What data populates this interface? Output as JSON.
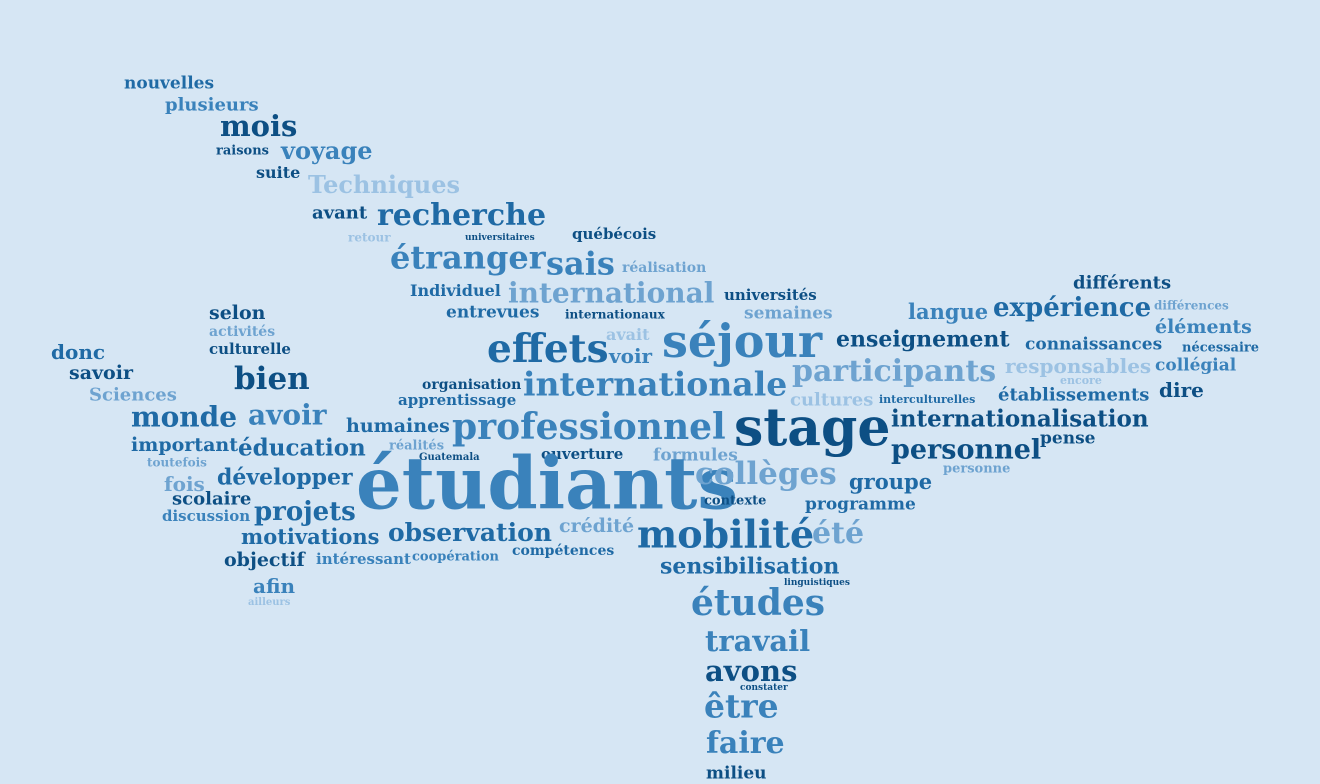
{
  "word_cloud": {
    "background_color": "#d6e6f4",
    "palette": [
      "#0d4f84",
      "#1f6aa5",
      "#3a82bb",
      "#6ea3d0",
      "#9cc2e3"
    ],
    "words": [
      {
        "id": "nouvelles",
        "text": "nouvelles",
        "color": "c2"
      },
      {
        "id": "plusieurs",
        "text": "plusieurs",
        "color": "c3"
      },
      {
        "id": "mois",
        "text": "mois",
        "color": "c1"
      },
      {
        "id": "raisons",
        "text": "raisons",
        "color": "c1"
      },
      {
        "id": "voyage",
        "text": "voyage",
        "color": "c3"
      },
      {
        "id": "suite",
        "text": "suite",
        "color": "c1"
      },
      {
        "id": "techniques",
        "text": "Techniques",
        "color": "c5"
      },
      {
        "id": "avant",
        "text": "avant",
        "color": "c1"
      },
      {
        "id": "recherche",
        "text": "recherche",
        "color": "c2"
      },
      {
        "id": "retour",
        "text": "retour",
        "color": "c5"
      },
      {
        "id": "universitaires",
        "text": "universitaires",
        "color": "c1"
      },
      {
        "id": "quebecois",
        "text": "québécois",
        "color": "c1"
      },
      {
        "id": "etranger",
        "text": "étranger",
        "color": "c3"
      },
      {
        "id": "sais",
        "text": "sais",
        "color": "c3"
      },
      {
        "id": "realisation",
        "text": "réalisation",
        "color": "c4"
      },
      {
        "id": "individuel",
        "text": "Individuel",
        "color": "c2"
      },
      {
        "id": "international",
        "text": "international",
        "color": "c4"
      },
      {
        "id": "universites",
        "text": "universités",
        "color": "c1"
      },
      {
        "id": "differents",
        "text": "différents",
        "color": "c1"
      },
      {
        "id": "selon",
        "text": "selon",
        "color": "c1"
      },
      {
        "id": "entrevues",
        "text": "entrevues",
        "color": "c2"
      },
      {
        "id": "internationaux",
        "text": "internationaux",
        "color": "c1"
      },
      {
        "id": "semaines",
        "text": "semaines",
        "color": "c4"
      },
      {
        "id": "langue",
        "text": "langue",
        "color": "c3"
      },
      {
        "id": "experience",
        "text": "expérience",
        "color": "c2"
      },
      {
        "id": "differences",
        "text": "différences",
        "color": "c4"
      },
      {
        "id": "activites",
        "text": "activités",
        "color": "c4"
      },
      {
        "id": "avait",
        "text": "avait",
        "color": "c5"
      },
      {
        "id": "elements",
        "text": "éléments",
        "color": "c3"
      },
      {
        "id": "culturelle",
        "text": "culturelle",
        "color": "c1"
      },
      {
        "id": "effets",
        "text": "effets",
        "color": "c2"
      },
      {
        "id": "sejour",
        "text": "séjour",
        "color": "c3"
      },
      {
        "id": "enseignement",
        "text": "enseignement",
        "color": "c1"
      },
      {
        "id": "donc",
        "text": "donc",
        "color": "c2"
      },
      {
        "id": "voir",
        "text": "voir",
        "color": "c3"
      },
      {
        "id": "connaissances",
        "text": "connaissances",
        "color": "c2"
      },
      {
        "id": "necessaire",
        "text": "nécessaire",
        "color": "c2"
      },
      {
        "id": "savoir",
        "text": "savoir",
        "color": "c1"
      },
      {
        "id": "bien",
        "text": "bien",
        "color": "c1"
      },
      {
        "id": "participants",
        "text": "participants",
        "color": "c4"
      },
      {
        "id": "responsables",
        "text": "responsables",
        "color": "c5"
      },
      {
        "id": "collegial",
        "text": "collégial",
        "color": "c3"
      },
      {
        "id": "encore",
        "text": "encore",
        "color": "c5"
      },
      {
        "id": "organisation",
        "text": "organisation",
        "color": "c1"
      },
      {
        "id": "internationale",
        "text": "internationale",
        "color": "c3"
      },
      {
        "id": "dire",
        "text": "dire",
        "color": "c1"
      },
      {
        "id": "sciences",
        "text": "Sciences",
        "color": "c4"
      },
      {
        "id": "apprentissage",
        "text": "apprentissage",
        "color": "c2"
      },
      {
        "id": "cultures",
        "text": "cultures",
        "color": "c5"
      },
      {
        "id": "interculturelles",
        "text": "interculturelles",
        "color": "c2"
      },
      {
        "id": "etablissements",
        "text": "établissements",
        "color": "c2"
      },
      {
        "id": "monde",
        "text": "monde",
        "color": "c2"
      },
      {
        "id": "avoir",
        "text": "avoir",
        "color": "c3"
      },
      {
        "id": "internationalisation",
        "text": "internationalisation",
        "color": "c1"
      },
      {
        "id": "humaines",
        "text": "humaines",
        "color": "c2"
      },
      {
        "id": "professionnel",
        "text": "professionnel",
        "color": "c3"
      },
      {
        "id": "stage",
        "text": "stage",
        "color": "c1"
      },
      {
        "id": "important",
        "text": "important",
        "color": "c2"
      },
      {
        "id": "education",
        "text": "éducation",
        "color": "c2"
      },
      {
        "id": "realites",
        "text": "réalités",
        "color": "c4"
      },
      {
        "id": "pense",
        "text": "pense",
        "color": "c1"
      },
      {
        "id": "guatemala",
        "text": "Guatemala",
        "color": "c1"
      },
      {
        "id": "personnel",
        "text": "personnel",
        "color": "c1"
      },
      {
        "id": "toutefois",
        "text": "toutefois",
        "color": "c4"
      },
      {
        "id": "ouverture",
        "text": "ouverture",
        "color": "c1"
      },
      {
        "id": "formules",
        "text": "formules",
        "color": "c4"
      },
      {
        "id": "personne",
        "text": "personne",
        "color": "c4"
      },
      {
        "id": "developper",
        "text": "développer",
        "color": "c2"
      },
      {
        "id": "etudiants",
        "text": "étudiants",
        "color": "c3"
      },
      {
        "id": "colleges",
        "text": "collèges",
        "color": "c4"
      },
      {
        "id": "fois",
        "text": "fois",
        "color": "c4"
      },
      {
        "id": "groupe",
        "text": "groupe",
        "color": "c2"
      },
      {
        "id": "scolaire",
        "text": "scolaire",
        "color": "c1"
      },
      {
        "id": "contexte",
        "text": "contexte",
        "color": "c1"
      },
      {
        "id": "discussion",
        "text": "discussion",
        "color": "c3"
      },
      {
        "id": "projets",
        "text": "projets",
        "color": "c2"
      },
      {
        "id": "programme",
        "text": "programme",
        "color": "c2"
      },
      {
        "id": "motivations",
        "text": "motivations",
        "color": "c2"
      },
      {
        "id": "observation",
        "text": "observation",
        "color": "c2"
      },
      {
        "id": "credite",
        "text": "crédité",
        "color": "c4"
      },
      {
        "id": "mobilite",
        "text": "mobilité",
        "color": "c2"
      },
      {
        "id": "ete",
        "text": "été",
        "color": "c4"
      },
      {
        "id": "objectif",
        "text": "objectif",
        "color": "c1"
      },
      {
        "id": "interessant",
        "text": "intéressant",
        "color": "c3"
      },
      {
        "id": "cooperation",
        "text": "coopération",
        "color": "c3"
      },
      {
        "id": "competences",
        "text": "compétences",
        "color": "c2"
      },
      {
        "id": "sensibilisation",
        "text": "sensibilisation",
        "color": "c2"
      },
      {
        "id": "afin",
        "text": "afin",
        "color": "c3"
      },
      {
        "id": "linguistiques",
        "text": "linguistiques",
        "color": "c1"
      },
      {
        "id": "ailleurs",
        "text": "ailleurs",
        "color": "c5"
      },
      {
        "id": "etudes",
        "text": "études",
        "color": "c3"
      },
      {
        "id": "travail",
        "text": "travail",
        "color": "c3"
      },
      {
        "id": "avons",
        "text": "avons",
        "color": "c1"
      },
      {
        "id": "constater",
        "text": "constater",
        "color": "c1"
      },
      {
        "id": "etre",
        "text": "être",
        "color": "c3"
      },
      {
        "id": "faire",
        "text": "faire",
        "color": "c3"
      },
      {
        "id": "milieu",
        "text": "milieu",
        "color": "c1"
      }
    ]
  }
}
